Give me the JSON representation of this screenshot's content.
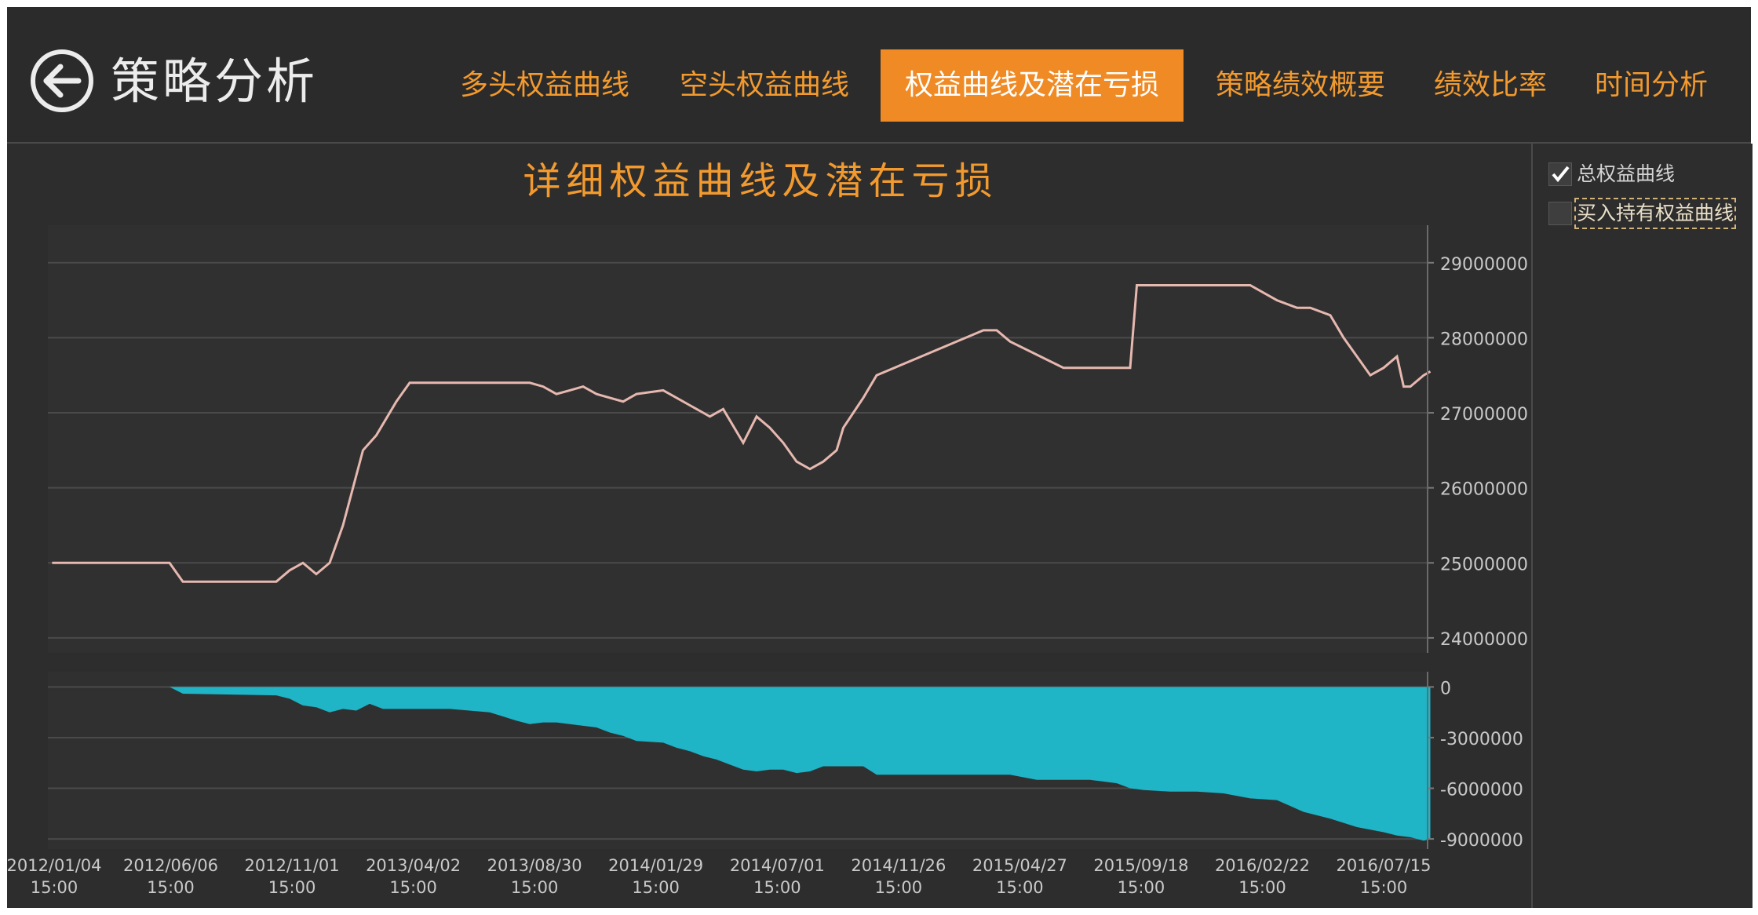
{
  "header": {
    "title": "策略分析",
    "back_icon": "back-arrow-icon",
    "tabs": [
      {
        "label": "多头权益曲线",
        "active": false
      },
      {
        "label": "空头权益曲线",
        "active": false
      },
      {
        "label": "权益曲线及潜在亏损",
        "active": true
      },
      {
        "label": "策略绩效概要",
        "active": false
      },
      {
        "label": "绩效比率",
        "active": false
      },
      {
        "label": "时间分析",
        "active": false
      }
    ]
  },
  "legend": {
    "items": [
      {
        "label": "总权益曲线",
        "checked": true
      },
      {
        "label": "买入持有权益曲线",
        "checked": false
      }
    ]
  },
  "colors": {
    "accent": "#f08a24",
    "equity_line": "#e6b8b0",
    "drawdown_fill": "#1fb4c6",
    "background": "#2d2d2d"
  },
  "chart_data": [
    {
      "type": "line",
      "title": "详细权益曲线及潜在亏损",
      "ylim": [
        23800000,
        29500000
      ],
      "yticks": [
        24000000,
        25000000,
        26000000,
        27000000,
        28000000,
        29000000
      ],
      "ytick_labels": [
        "24000000",
        "25000000",
        "26000000",
        "27000000",
        "28000000",
        "29000000"
      ],
      "xlim": [
        0,
        1.04
      ],
      "xticks": [
        0,
        0.0909,
        0.1818,
        0.2727,
        0.3636,
        0.4545,
        0.5455,
        0.6364,
        0.7273,
        0.8182,
        0.9091,
        1.0
      ],
      "xtick_labels": [
        "2012/01/04 15:00",
        "2012/06/06 15:00",
        "2012/11/01 15:00",
        "2013/04/02 15:00",
        "2013/08/30 15:00",
        "2014/01/29 15:00",
        "2014/07/01 15:00",
        "2014/11/26 15:00",
        "2015/04/27 15:00",
        "2015/09/18 15:00",
        "2016/02/22 15:00",
        "2016/07/15 15:00"
      ],
      "grid": true,
      "series": [
        {
          "x": [
            0.002,
            0.09,
            0.1,
            0.17,
            0.18,
            0.19,
            0.2,
            0.21,
            0.22,
            0.235,
            0.245,
            0.26,
            0.27,
            0.3,
            0.35,
            0.36,
            0.37,
            0.38,
            0.39,
            0.4,
            0.41,
            0.42,
            0.43,
            0.44,
            0.46,
            0.47,
            0.48,
            0.49,
            0.495,
            0.505,
            0.52,
            0.53,
            0.54,
            0.55,
            0.56,
            0.57,
            0.58,
            0.59,
            0.595,
            0.61,
            0.62,
            0.7,
            0.705,
            0.71,
            0.72,
            0.76,
            0.77,
            0.78,
            0.79,
            0.81,
            0.815,
            0.9,
            0.91,
            0.92,
            0.935,
            0.945,
            0.96,
            0.97,
            0.99,
            1.0,
            1.01,
            1.015,
            1.02,
            1.03,
            1.035
          ],
          "y": [
            25000000,
            25000000,
            24750000,
            24750000,
            24900000,
            25000000,
            24850000,
            25000000,
            25500000,
            26500000,
            26700000,
            27150000,
            27400000,
            27400000,
            27400000,
            27400000,
            27350000,
            27250000,
            27300000,
            27350000,
            27250000,
            27200000,
            27150000,
            27250000,
            27300000,
            27200000,
            27100000,
            27000000,
            26950000,
            27050000,
            26600000,
            26950000,
            26800000,
            26600000,
            26350000,
            26250000,
            26350000,
            26500000,
            26800000,
            27200000,
            27500000,
            28100000,
            28100000,
            28100000,
            27950000,
            27600000,
            27600000,
            27600000,
            27600000,
            27600000,
            28700000,
            28700000,
            28600000,
            28500000,
            28400000,
            28400000,
            28300000,
            28000000,
            27500000,
            27600000,
            27750000,
            27350000,
            27350000,
            27500000,
            27550000
          ]
        }
      ]
    },
    {
      "type": "area",
      "ylim": [
        -9600000,
        900000
      ],
      "yticks": [
        0,
        -3000000,
        -6000000,
        -9000000
      ],
      "ytick_labels": [
        "0",
        "-3000000",
        "-6000000",
        "-9000000"
      ],
      "grid": true,
      "series": [
        {
          "x": [
            0.0,
            0.09,
            0.1,
            0.17,
            0.18,
            0.19,
            0.2,
            0.21,
            0.22,
            0.23,
            0.24,
            0.25,
            0.26,
            0.3,
            0.33,
            0.35,
            0.36,
            0.37,
            0.38,
            0.39,
            0.4,
            0.41,
            0.42,
            0.43,
            0.44,
            0.46,
            0.47,
            0.48,
            0.49,
            0.5,
            0.51,
            0.52,
            0.53,
            0.54,
            0.55,
            0.56,
            0.57,
            0.58,
            0.59,
            0.6,
            0.61,
            0.62,
            0.63,
            0.64,
            0.65,
            0.66,
            0.67,
            0.68,
            0.7,
            0.72,
            0.74,
            0.76,
            0.78,
            0.8,
            0.81,
            0.82,
            0.84,
            0.86,
            0.88,
            0.9,
            0.92,
            0.94,
            0.96,
            0.98,
            1.0,
            1.01,
            1.02,
            1.03,
            1.035
          ],
          "y": [
            0,
            0,
            -400000,
            -500000,
            -700000,
            -1100000,
            -1200000,
            -1500000,
            -1300000,
            -1400000,
            -1000000,
            -1300000,
            -1300000,
            -1300000,
            -1500000,
            -2000000,
            -2200000,
            -2100000,
            -2100000,
            -2200000,
            -2300000,
            -2400000,
            -2700000,
            -2900000,
            -3200000,
            -3300000,
            -3600000,
            -3800000,
            -4100000,
            -4300000,
            -4600000,
            -4900000,
            -5000000,
            -4900000,
            -4900000,
            -5100000,
            -5000000,
            -4700000,
            -4700000,
            -4700000,
            -4700000,
            -5200000,
            -5200000,
            -5200000,
            -5200000,
            -5200000,
            -5200000,
            -5200000,
            -5200000,
            -5200000,
            -5500000,
            -5500000,
            -5500000,
            -5700000,
            -6000000,
            -6100000,
            -6200000,
            -6200000,
            -6300000,
            -6600000,
            -6700000,
            -7400000,
            -7800000,
            -8300000,
            -8600000,
            -8800000,
            -8900000,
            -9100000,
            -9000000
          ]
        }
      ]
    }
  ]
}
